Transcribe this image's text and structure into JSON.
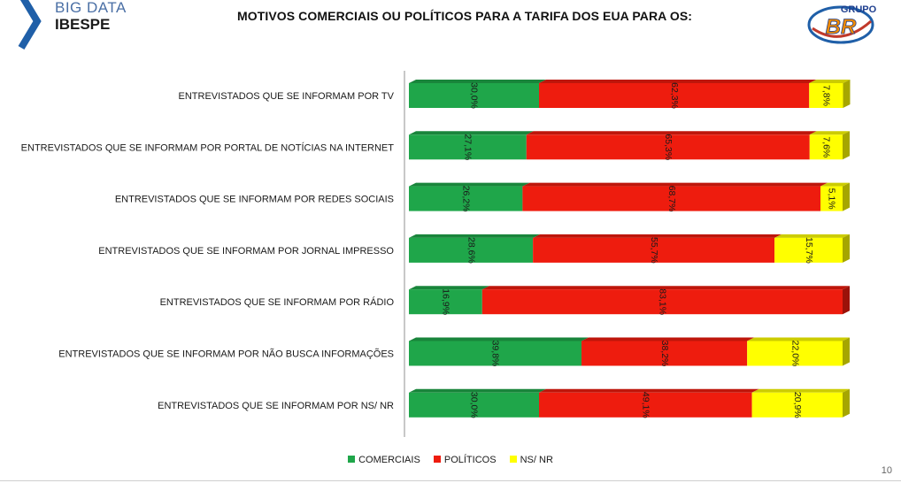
{
  "brand": {
    "line1": "BIG DATA",
    "line2": "IBESPE"
  },
  "logo": {
    "top_text": "GRUPO",
    "mark": "BR"
  },
  "page_number": "10",
  "colors": {
    "comerciais": "#1fa64a",
    "politicos": "#ee1c0e",
    "ns_nr": "#ffff00",
    "brand_blue": "#1f5fa8"
  },
  "chart_data": {
    "type": "bar",
    "orientation": "horizontal",
    "stacked": true,
    "title": "MOTIVOS COMERCIAIS OU POLÍTICOS PARA A TARIFA DOS EUA PARA OS:",
    "categories": [
      "ENTREVISTADOS QUE SE INFORMAM POR TV",
      "ENTREVISTADOS QUE SE INFORMAM POR PORTAL DE NOTÍCIAS NA INTERNET",
      "ENTREVISTADOS QUE SE INFORMAM POR REDES SOCIAIS",
      "ENTREVISTADOS QUE SE INFORMAM POR JORNAL IMPRESSO",
      "ENTREVISTADOS QUE SE INFORMAM POR RÁDIO",
      "ENTREVISTADOS QUE SE INFORMAM POR NÃO BUSCA INFORMAÇÕES",
      "ENTREVISTADOS QUE SE INFORMAM POR NS/ NR"
    ],
    "series": [
      {
        "name": "COMERCIAIS",
        "color": "#1fa64a",
        "values": [
          30.0,
          27.1,
          26.2,
          28.6,
          16.9,
          39.8,
          30.0
        ],
        "labels": [
          "30,0%",
          "27,1%",
          "26,2%",
          "28,6%",
          "16,9%",
          "39,8%",
          "30,0%"
        ]
      },
      {
        "name": "POLÍTICOS",
        "color": "#ee1c0e",
        "values": [
          62.3,
          65.3,
          68.7,
          55.7,
          83.1,
          38.2,
          49.1
        ],
        "labels": [
          "62,3%",
          "65,3%",
          "68,7%",
          "55,7%",
          "83,1%",
          "38,2%",
          "49,1%"
        ]
      },
      {
        "name": "NS/ NR",
        "color": "#ffff00",
        "values": [
          7.8,
          7.6,
          5.1,
          15.7,
          0,
          22.0,
          20.9
        ],
        "labels": [
          "7,8%",
          "7,6%",
          "5,1%",
          "15,7%",
          "",
          "22,0%",
          "20,9%"
        ]
      }
    ],
    "xlim": [
      0,
      100
    ],
    "legend": "bottom-center"
  }
}
